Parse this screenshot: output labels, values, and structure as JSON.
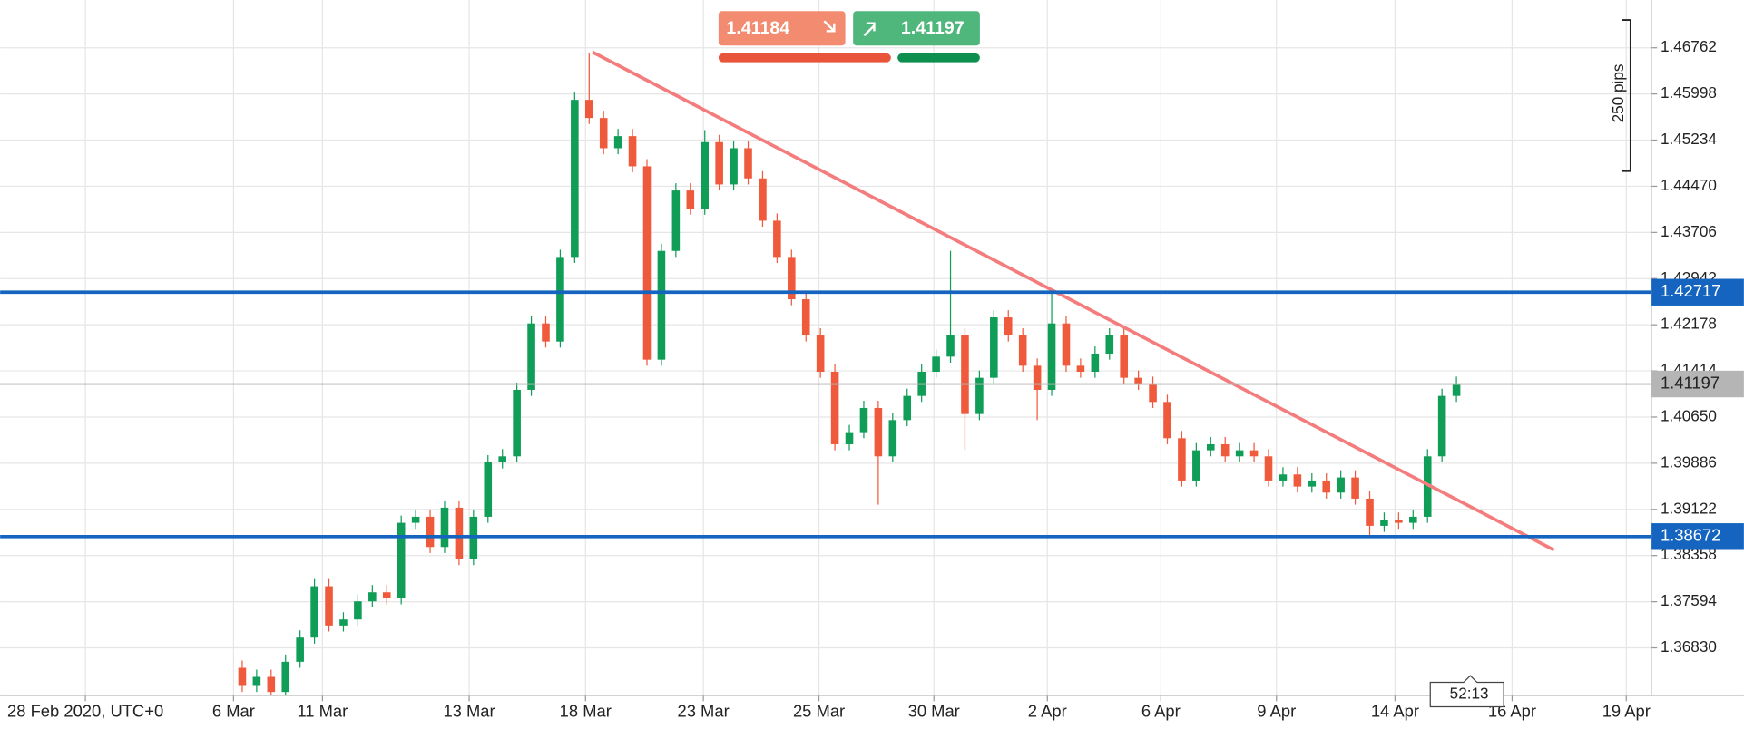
{
  "chart_data": {
    "type": "candlestick",
    "xlim": [
      -33.5,
      195
    ],
    "ylim": [
      1.36039,
      1.47553
    ],
    "grid": true,
    "up_color": "#0f9d58",
    "down_color": "#ef5a3c",
    "xticks": [
      {
        "value": -21.7,
        "label": "28 Feb 2020, UTC+0"
      },
      {
        "value": -1.2,
        "label": "6 Mar"
      },
      {
        "value": 11.1,
        "label": "11 Mar"
      },
      {
        "value": 31.4,
        "label": "13 Mar"
      },
      {
        "value": 47.5,
        "label": "18 Mar"
      },
      {
        "value": 63.8,
        "label": "23 Mar"
      },
      {
        "value": 79.8,
        "label": "25 Mar"
      },
      {
        "value": 95.7,
        "label": "30 Mar"
      },
      {
        "value": 111.4,
        "label": "2 Apr"
      },
      {
        "value": 127.1,
        "label": "6 Apr"
      },
      {
        "value": 143.1,
        "label": "9 Apr"
      },
      {
        "value": 159.5,
        "label": "14 Apr"
      },
      {
        "value": 175.7,
        "label": "16 Apr"
      },
      {
        "value": 191.5,
        "label": "19 Apr"
      }
    ],
    "yticks": [
      1.46762,
      1.45998,
      1.45234,
      {
        "value": 1.4447,
        "label": "1.44470"
      },
      1.43706,
      1.42942,
      1.42178,
      1.41414,
      {
        "value": 1.4065,
        "label": "1.40650"
      },
      1.39886,
      1.39122,
      1.38358,
      1.37594,
      {
        "value": 1.3683,
        "label": "1.36830"
      }
    ],
    "candles": {
      "x": [
        0,
        2,
        4,
        6,
        8,
        10,
        12,
        14,
        16,
        18,
        20,
        22,
        24,
        26,
        28,
        30,
        32,
        34,
        36,
        38,
        40,
        42,
        44,
        46,
        48,
        50,
        52,
        54,
        56,
        58,
        60,
        62,
        64,
        66,
        68,
        70,
        72,
        74,
        76,
        78,
        80,
        82,
        84,
        86,
        88,
        90,
        92,
        94,
        96,
        98,
        100,
        102,
        104,
        106,
        108,
        110,
        112,
        114,
        116,
        118,
        120,
        122,
        124,
        126,
        128,
        130,
        132,
        134,
        136,
        138,
        140,
        142,
        144,
        146,
        148,
        150,
        152,
        154,
        156,
        158,
        160,
        162,
        164,
        166,
        168
      ],
      "open": [
        1.365,
        1.362,
        1.3635,
        1.361,
        1.366,
        1.37,
        1.3785,
        1.372,
        1.373,
        1.376,
        1.3775,
        1.3765,
        1.389,
        1.39,
        1.385,
        1.3915,
        1.383,
        1.39,
        1.399,
        1.4,
        1.411,
        1.422,
        1.419,
        1.433,
        1.459,
        1.456,
        1.451,
        1.453,
        1.448,
        1.416,
        1.434,
        1.444,
        1.441,
        1.452,
        1.445,
        1.451,
        1.446,
        1.439,
        1.433,
        1.426,
        1.42,
        1.414,
        1.402,
        1.404,
        1.408,
        1.4,
        1.406,
        1.41,
        1.414,
        1.4165,
        1.42,
        1.407,
        1.413,
        1.423,
        1.42,
        1.415,
        1.411,
        1.422,
        1.415,
        1.414,
        1.417,
        1.42,
        1.413,
        1.412,
        1.409,
        1.403,
        1.396,
        1.401,
        1.402,
        1.4,
        1.401,
        1.4,
        1.396,
        1.397,
        1.395,
        1.396,
        1.394,
        1.3965,
        1.393,
        1.3885,
        1.3895,
        1.389,
        1.39,
        1.4,
        1.41
      ],
      "high": [
        1.3662,
        1.3647,
        1.3647,
        1.3672,
        1.3712,
        1.3797,
        1.3797,
        1.3742,
        1.3772,
        1.3787,
        1.3787,
        1.3902,
        1.3912,
        1.3912,
        1.3927,
        1.3927,
        1.3912,
        1.4002,
        1.4012,
        1.4122,
        1.4232,
        1.4232,
        1.4342,
        1.4602,
        1.4667,
        1.4572,
        1.4542,
        1.4542,
        1.4492,
        1.4352,
        1.4452,
        1.4452,
        1.454,
        1.4532,
        1.4522,
        1.4522,
        1.4472,
        1.4402,
        1.4342,
        1.4272,
        1.4212,
        1.4152,
        1.4052,
        1.4092,
        1.4092,
        1.4072,
        1.4112,
        1.4152,
        1.4177,
        1.434,
        1.4212,
        1.4142,
        1.4242,
        1.4242,
        1.4212,
        1.4162,
        1.427,
        1.4232,
        1.4162,
        1.4182,
        1.4212,
        1.4212,
        1.4142,
        1.4132,
        1.4102,
        1.4042,
        1.4022,
        1.4032,
        1.4032,
        1.4022,
        1.4022,
        1.4012,
        1.3982,
        1.3982,
        1.3972,
        1.3972,
        1.3977,
        1.3977,
        1.3942,
        1.3907,
        1.3907,
        1.3912,
        1.4012,
        1.4112,
        1.4132
      ],
      "low": [
        1.361,
        1.361,
        1.3605,
        1.3605,
        1.365,
        1.369,
        1.371,
        1.371,
        1.372,
        1.375,
        1.3755,
        1.3755,
        1.388,
        1.384,
        1.384,
        1.382,
        1.382,
        1.389,
        1.398,
        1.399,
        1.41,
        1.418,
        1.418,
        1.432,
        1.455,
        1.45,
        1.45,
        1.447,
        1.415,
        1.415,
        1.433,
        1.44,
        1.44,
        1.444,
        1.444,
        1.445,
        1.438,
        1.432,
        1.425,
        1.419,
        1.413,
        1.401,
        1.401,
        1.403,
        1.392,
        1.399,
        1.405,
        1.409,
        1.413,
        1.4155,
        1.401,
        1.406,
        1.412,
        1.419,
        1.414,
        1.406,
        1.41,
        1.414,
        1.413,
        1.413,
        1.416,
        1.412,
        1.411,
        1.408,
        1.402,
        1.395,
        1.395,
        1.4,
        1.399,
        1.399,
        1.399,
        1.395,
        1.395,
        1.394,
        1.394,
        1.393,
        1.393,
        1.392,
        1.387,
        1.3875,
        1.388,
        1.388,
        1.389,
        1.399,
        1.409
      ],
      "close": [
        1.362,
        1.3635,
        1.361,
        1.366,
        1.37,
        1.3785,
        1.372,
        1.373,
        1.376,
        1.3775,
        1.3765,
        1.389,
        1.39,
        1.385,
        1.3915,
        1.383,
        1.39,
        1.399,
        1.4,
        1.411,
        1.422,
        1.419,
        1.433,
        1.459,
        1.456,
        1.451,
        1.453,
        1.448,
        1.416,
        1.434,
        1.444,
        1.441,
        1.452,
        1.445,
        1.451,
        1.446,
        1.439,
        1.433,
        1.426,
        1.42,
        1.414,
        1.402,
        1.404,
        1.408,
        1.4,
        1.406,
        1.41,
        1.414,
        1.4165,
        1.42,
        1.407,
        1.413,
        1.423,
        1.42,
        1.415,
        1.411,
        1.422,
        1.415,
        1.414,
        1.417,
        1.42,
        1.413,
        1.412,
        1.409,
        1.403,
        1.396,
        1.401,
        1.402,
        1.4,
        1.401,
        1.4,
        1.396,
        1.397,
        1.395,
        1.396,
        1.394,
        1.3965,
        1.393,
        1.3885,
        1.3895,
        1.389,
        1.39,
        1.4,
        1.41,
        1.412
      ]
    },
    "levels": [
      {
        "value": 1.42717,
        "color": "#1565c0"
      },
      {
        "value": 1.38672,
        "color": "#1565c0"
      }
    ],
    "current_price": {
      "value": 1.41197,
      "color": "#b5b5b5"
    },
    "trendline": {
      "x": [
        48.5,
        181.5
      ],
      "y": [
        1.46688,
        1.3845
      ],
      "color": "#f47c7c"
    },
    "trade_panel": {
      "sell": 1.41184,
      "buy": 1.41197
    },
    "ruler_label": "250 pips",
    "timer": "52:13"
  }
}
